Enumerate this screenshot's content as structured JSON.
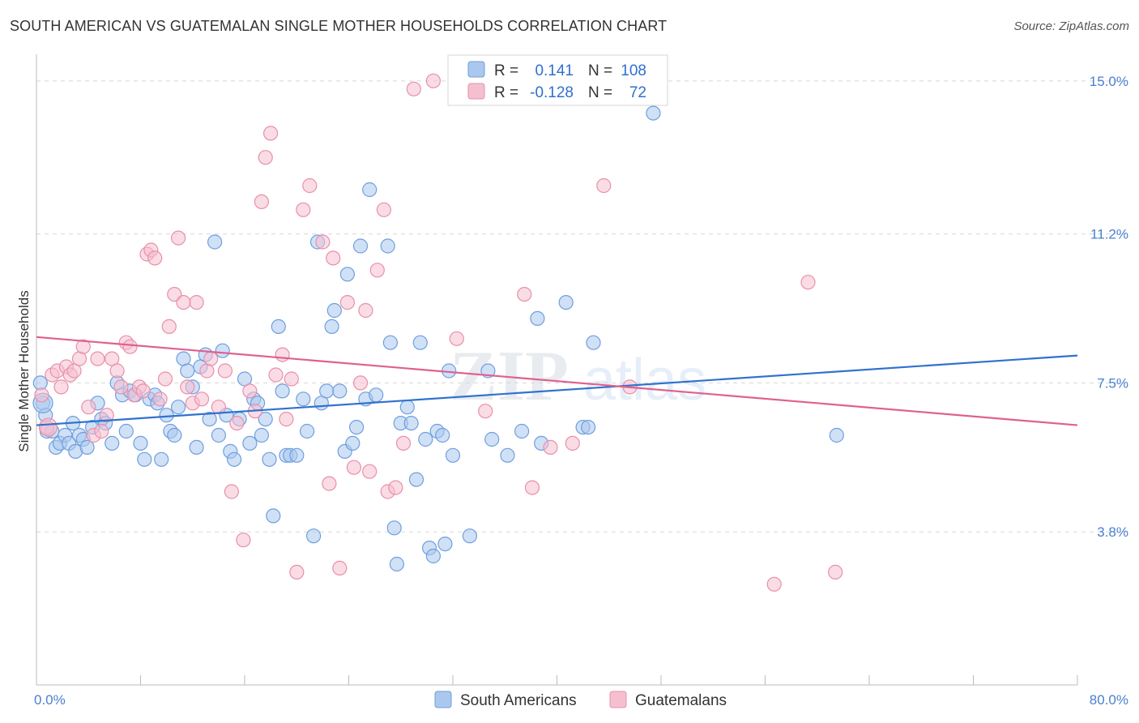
{
  "title": "SOUTH AMERICAN VS GUATEMALAN SINGLE MOTHER HOUSEHOLDS CORRELATION CHART",
  "source": "Source: ZipAtlas.com",
  "watermark": {
    "zip": "ZIP",
    "atlas": "atlas"
  },
  "colors": {
    "blue_fill": "#aac8ee",
    "blue_stroke": "#6f9edf",
    "blue_line": "#2f72cf",
    "pink_fill": "#f5bfd0",
    "pink_stroke": "#e98fab",
    "pink_line": "#e0608e",
    "grid": "#d8d8d8",
    "tick_text": "#4a7fcf"
  },
  "legend": {
    "rows": [
      {
        "r_label": "R =",
        "r_value": "0.141",
        "n_label": "N =",
        "n_value": "108"
      },
      {
        "r_label": "R =",
        "r_value": "-0.128",
        "n_label": "N =",
        "n_value": "72"
      }
    ]
  },
  "bottom_legend": [
    "South Americans",
    "Guatemalans"
  ],
  "chart_data": {
    "type": "scatter",
    "title": "SOUTH AMERICAN VS GUATEMALAN SINGLE MOTHER HOUSEHOLDS CORRELATION CHART",
    "xlabel": "",
    "ylabel": "Single Mother Households",
    "xlim": [
      0,
      80
    ],
    "ylim": [
      0,
      15.5
    ],
    "x_tick_labels": [
      "0.0%",
      "80.0%"
    ],
    "y_ticks": [
      3.8,
      7.5,
      11.2,
      15.0
    ],
    "y_tick_labels": [
      "3.8%",
      "7.5%",
      "11.2%",
      "15.0%"
    ],
    "grid": true,
    "series": [
      {
        "name": "South Americans",
        "r": 0.141,
        "n": 108,
        "trend": {
          "x": [
            0,
            80
          ],
          "y": [
            6.45,
            8.18
          ]
        },
        "points": [
          [
            0.3,
            7.5
          ],
          [
            0.5,
            7.0
          ],
          [
            0.8,
            6.3
          ],
          [
            1.2,
            6.3
          ],
          [
            1.5,
            5.9
          ],
          [
            1.8,
            6.0
          ],
          [
            2.2,
            6.2
          ],
          [
            2.5,
            6.0
          ],
          [
            2.8,
            6.5
          ],
          [
            3.0,
            5.8
          ],
          [
            3.3,
            6.2
          ],
          [
            3.6,
            6.1
          ],
          [
            3.9,
            5.9
          ],
          [
            4.3,
            6.4
          ],
          [
            4.7,
            7.0
          ],
          [
            5.0,
            6.6
          ],
          [
            5.3,
            6.5
          ],
          [
            5.8,
            6.0
          ],
          [
            6.2,
            7.5
          ],
          [
            6.6,
            7.2
          ],
          [
            6.9,
            6.3
          ],
          [
            7.2,
            7.3
          ],
          [
            7.6,
            7.2
          ],
          [
            8.0,
            6.0
          ],
          [
            8.3,
            5.6
          ],
          [
            8.7,
            7.1
          ],
          [
            9.1,
            7.2
          ],
          [
            9.3,
            7.0
          ],
          [
            9.6,
            5.6
          ],
          [
            10.0,
            6.7
          ],
          [
            10.3,
            6.3
          ],
          [
            10.6,
            6.2
          ],
          [
            10.9,
            6.9
          ],
          [
            11.3,
            8.1
          ],
          [
            11.6,
            7.8
          ],
          [
            12.0,
            7.4
          ],
          [
            12.3,
            5.9
          ],
          [
            12.6,
            7.9
          ],
          [
            13.0,
            8.2
          ],
          [
            13.3,
            6.6
          ],
          [
            13.7,
            11.0
          ],
          [
            14.0,
            6.2
          ],
          [
            14.3,
            8.3
          ],
          [
            14.6,
            6.7
          ],
          [
            14.9,
            5.8
          ],
          [
            15.2,
            5.6
          ],
          [
            15.6,
            6.6
          ],
          [
            16.0,
            7.6
          ],
          [
            16.4,
            6.0
          ],
          [
            16.7,
            7.1
          ],
          [
            17.0,
            7.0
          ],
          [
            17.3,
            6.2
          ],
          [
            17.6,
            6.6
          ],
          [
            17.9,
            5.6
          ],
          [
            18.2,
            4.2
          ],
          [
            18.6,
            8.9
          ],
          [
            18.9,
            7.3
          ],
          [
            19.2,
            5.7
          ],
          [
            19.5,
            5.7
          ],
          [
            20.0,
            5.7
          ],
          [
            20.5,
            7.1
          ],
          [
            20.8,
            6.3
          ],
          [
            21.3,
            3.7
          ],
          [
            21.6,
            11.0
          ],
          [
            21.9,
            7.0
          ],
          [
            22.3,
            7.3
          ],
          [
            22.7,
            8.9
          ],
          [
            22.9,
            9.3
          ],
          [
            23.3,
            7.3
          ],
          [
            23.7,
            5.8
          ],
          [
            23.9,
            10.2
          ],
          [
            24.3,
            6.0
          ],
          [
            24.6,
            6.4
          ],
          [
            24.9,
            10.9
          ],
          [
            25.3,
            7.1
          ],
          [
            25.6,
            12.3
          ],
          [
            26.1,
            7.2
          ],
          [
            27.0,
            10.9
          ],
          [
            27.2,
            8.5
          ],
          [
            27.5,
            3.9
          ],
          [
            27.7,
            3.0
          ],
          [
            28.0,
            6.5
          ],
          [
            28.5,
            6.9
          ],
          [
            28.8,
            6.5
          ],
          [
            29.2,
            5.1
          ],
          [
            29.5,
            8.5
          ],
          [
            29.9,
            6.1
          ],
          [
            30.2,
            3.4
          ],
          [
            30.5,
            3.2
          ],
          [
            30.8,
            6.3
          ],
          [
            31.2,
            6.2
          ],
          [
            31.4,
            3.5
          ],
          [
            31.7,
            7.8
          ],
          [
            32.0,
            5.7
          ],
          [
            33.3,
            3.7
          ],
          [
            34.7,
            7.8
          ],
          [
            35.0,
            6.1
          ],
          [
            36.2,
            5.7
          ],
          [
            37.3,
            6.3
          ],
          [
            38.5,
            9.1
          ],
          [
            38.8,
            6.0
          ],
          [
            40.7,
            9.5
          ],
          [
            42.0,
            6.4
          ],
          [
            42.4,
            6.4
          ],
          [
            42.8,
            8.5
          ],
          [
            47.4,
            14.2
          ],
          [
            61.5,
            6.2
          ],
          [
            0.7,
            6.7
          ]
        ]
      },
      {
        "name": "Guatemalans",
        "r": -0.128,
        "n": 72,
        "trend": {
          "x": [
            0,
            80
          ],
          "y": [
            8.64,
            6.45
          ]
        },
        "points": [
          [
            0.4,
            7.2
          ],
          [
            0.8,
            6.4
          ],
          [
            1.2,
            7.7
          ],
          [
            1.6,
            7.8
          ],
          [
            1.9,
            7.4
          ],
          [
            2.3,
            7.9
          ],
          [
            2.6,
            7.7
          ],
          [
            2.9,
            7.8
          ],
          [
            3.3,
            8.1
          ],
          [
            3.6,
            8.4
          ],
          [
            4.0,
            6.9
          ],
          [
            4.4,
            6.2
          ],
          [
            4.7,
            8.1
          ],
          [
            5.0,
            6.3
          ],
          [
            5.4,
            6.7
          ],
          [
            5.8,
            8.1
          ],
          [
            6.2,
            7.8
          ],
          [
            6.5,
            7.4
          ],
          [
            6.9,
            8.5
          ],
          [
            7.2,
            8.4
          ],
          [
            7.5,
            7.2
          ],
          [
            7.9,
            7.4
          ],
          [
            8.2,
            7.3
          ],
          [
            8.5,
            10.7
          ],
          [
            8.8,
            10.8
          ],
          [
            9.1,
            10.6
          ],
          [
            9.5,
            7.1
          ],
          [
            9.9,
            7.6
          ],
          [
            10.2,
            8.9
          ],
          [
            10.6,
            9.7
          ],
          [
            10.9,
            11.1
          ],
          [
            11.3,
            9.5
          ],
          [
            11.6,
            7.4
          ],
          [
            12.0,
            7.0
          ],
          [
            12.3,
            9.5
          ],
          [
            12.7,
            7.1
          ],
          [
            13.1,
            7.8
          ],
          [
            13.4,
            8.1
          ],
          [
            14.0,
            6.9
          ],
          [
            14.5,
            7.8
          ],
          [
            15.0,
            4.8
          ],
          [
            15.4,
            6.5
          ],
          [
            15.9,
            3.6
          ],
          [
            16.4,
            7.3
          ],
          [
            16.8,
            6.8
          ],
          [
            17.3,
            12.0
          ],
          [
            17.6,
            13.1
          ],
          [
            18.0,
            13.7
          ],
          [
            18.4,
            7.7
          ],
          [
            18.9,
            8.2
          ],
          [
            19.2,
            6.6
          ],
          [
            19.6,
            7.6
          ],
          [
            20.0,
            2.8
          ],
          [
            20.5,
            11.8
          ],
          [
            21.0,
            12.4
          ],
          [
            22.0,
            11.0
          ],
          [
            22.5,
            5.0
          ],
          [
            22.8,
            10.6
          ],
          [
            23.3,
            2.9
          ],
          [
            23.9,
            9.5
          ],
          [
            24.4,
            5.4
          ],
          [
            24.9,
            7.5
          ],
          [
            25.3,
            9.3
          ],
          [
            25.6,
            5.3
          ],
          [
            26.2,
            10.3
          ],
          [
            26.7,
            11.8
          ],
          [
            27.0,
            4.8
          ],
          [
            27.6,
            4.9
          ],
          [
            28.2,
            6.0
          ],
          [
            30.5,
            15.0
          ],
          [
            34.5,
            6.8
          ],
          [
            37.5,
            9.7
          ]
        ],
        "extra_points": [
          [
            38.1,
            4.9
          ],
          [
            41.2,
            6.0
          ],
          [
            43.6,
            12.4
          ],
          [
            45.6,
            7.4
          ],
          [
            56.7,
            2.5
          ],
          [
            59.3,
            10.0
          ],
          [
            61.4,
            2.8
          ],
          [
            29.0,
            14.8
          ],
          [
            32.3,
            8.6
          ],
          [
            39.5,
            5.9
          ]
        ]
      }
    ]
  }
}
